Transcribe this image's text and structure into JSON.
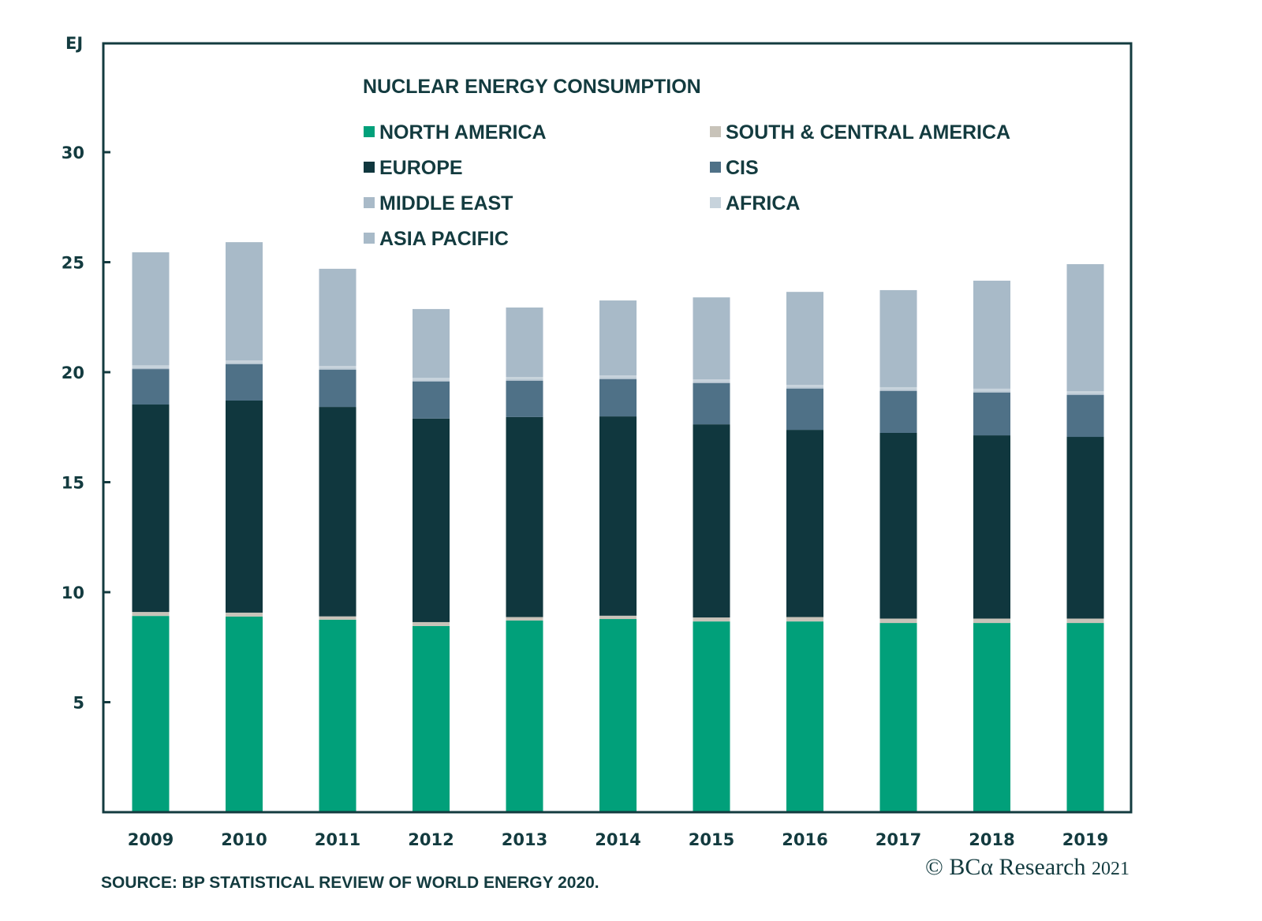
{
  "chart_data": {
    "type": "bar",
    "stacked": true,
    "title": "NUCLEAR ENERGY CONSUMPTION",
    "ylabel": "EJ",
    "xlabel": "",
    "ylim": [
      0,
      35
    ],
    "yticks": [
      5,
      10,
      15,
      20,
      25,
      30
    ],
    "grid": false,
    "legend_position": "top-center",
    "categories": [
      "2009",
      "2010",
      "2011",
      "2012",
      "2013",
      "2014",
      "2015",
      "2016",
      "2017",
      "2018",
      "2019"
    ],
    "series": [
      {
        "name": "NORTH AMERICA",
        "color": "#01a07a",
        "values": [
          8.92,
          8.89,
          8.75,
          8.46,
          8.71,
          8.78,
          8.67,
          8.67,
          8.6,
          8.6,
          8.6
        ]
      },
      {
        "name": "SOUTH & CENTRAL AMERICA",
        "color": "#c8c3b9",
        "values": [
          0.18,
          0.18,
          0.15,
          0.18,
          0.16,
          0.15,
          0.18,
          0.2,
          0.2,
          0.2,
          0.2
        ]
      },
      {
        "name": "EUROPE",
        "color": "#10373e",
        "values": [
          9.43,
          9.64,
          9.52,
          9.25,
          9.09,
          9.06,
          8.78,
          8.51,
          8.44,
          8.33,
          8.26
        ]
      },
      {
        "name": "CIS",
        "color": "#4f7187",
        "values": [
          1.61,
          1.65,
          1.69,
          1.68,
          1.65,
          1.69,
          1.87,
          1.87,
          1.9,
          1.94,
          1.9
        ]
      },
      {
        "name": "MIDDLE EAST",
        "color": "#a9bac8",
        "values": [
          0.05,
          0.05,
          0.05,
          0.05,
          0.05,
          0.05,
          0.05,
          0.05,
          0.06,
          0.06,
          0.06
        ]
      },
      {
        "name": "AFRICA",
        "color": "#c7d3dc",
        "values": [
          0.12,
          0.12,
          0.12,
          0.12,
          0.12,
          0.12,
          0.12,
          0.12,
          0.12,
          0.12,
          0.12
        ]
      },
      {
        "name": "ASIA PACIFIC",
        "color": "#a8bac8",
        "values": [
          5.14,
          5.38,
          4.42,
          3.13,
          3.16,
          3.41,
          3.73,
          4.23,
          4.41,
          4.91,
          5.77
        ]
      }
    ],
    "legend_order": [
      "NORTH AMERICA",
      "SOUTH & CENTRAL AMERICA",
      "EUROPE",
      "CIS",
      "MIDDLE EAST",
      "AFRICA",
      "ASIA PACIFIC"
    ]
  },
  "footer": {
    "source": "SOURCE: BP STATISTICAL REVIEW OF WORLD ENERGY 2020.",
    "copyright_symbol": "©",
    "brand": "BCα Research",
    "year": "2021"
  }
}
